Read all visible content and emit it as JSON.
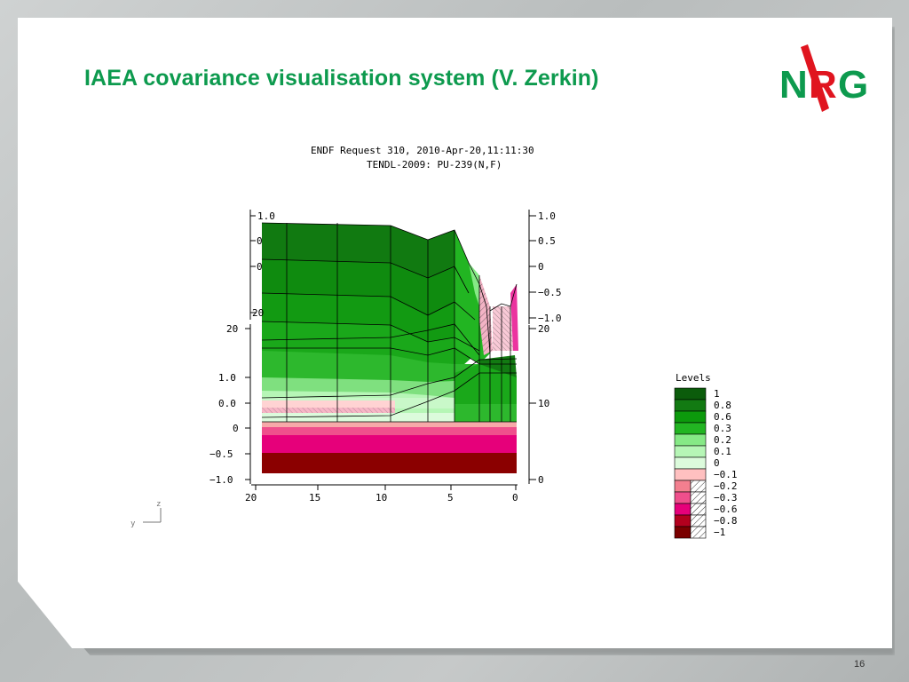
{
  "slide": {
    "title": "IAEA covariance visualisation system (V. Zerkin)",
    "page_number": "16",
    "logo_text": [
      "N",
      "R",
      "G"
    ]
  },
  "plot": {
    "header_line1": "ENDF Request 310, 2010-Apr-20,11:11:30",
    "header_line2": "TENDL-2009: PU-239(N,F)",
    "bottom_axis": {
      "ticks": [
        "20",
        "15",
        "10",
        "5",
        "0"
      ],
      "values": [
        20,
        15,
        10,
        5,
        0
      ]
    },
    "right_axis_upper": {
      "ticks": [
        "1.0",
        "0.5",
        "0",
        "−0.5",
        "−1.0"
      ],
      "values": [
        1.0,
        0.5,
        0,
        -0.5,
        -1.0
      ]
    },
    "right_axis_lower": {
      "ticks": [
        "20",
        "10",
        "0"
      ],
      "values": [
        20,
        10,
        0
      ]
    },
    "left_axis_lower": {
      "ticks": [
        "20",
        "1.0",
        "0.0",
        "0",
        "−0.5",
        "−1.0"
      ]
    },
    "left_axis_upper": {
      "ticks": [
        "1.0",
        "0",
        "0",
        "20"
      ]
    },
    "axis_glyphs": {
      "y": "y",
      "z": "z"
    },
    "legend": {
      "title": "Levels",
      "levels": [
        {
          "label": "1",
          "color": "#0b5c0b",
          "hatch": false
        },
        {
          "label": "0.8",
          "color": "#127a12",
          "hatch": false
        },
        {
          "label": "0.6",
          "color": "#0c9a0c",
          "hatch": false
        },
        {
          "label": "0.3",
          "color": "#22b522",
          "hatch": false
        },
        {
          "label": "0.2",
          "color": "#86e986",
          "hatch": false
        },
        {
          "label": "0.1",
          "color": "#b6f6b6",
          "hatch": false
        },
        {
          "label": "0",
          "color": "#dcfbdc",
          "hatch": false
        },
        {
          "label": "−0.1",
          "color": "#ffc0c0",
          "hatch": false
        },
        {
          "label": "−0.2",
          "color": "#f37f8f",
          "hatch": true
        },
        {
          "label": "−0.3",
          "color": "#ef4f8c",
          "hatch": true
        },
        {
          "label": "−0.6",
          "color": "#e6007a",
          "hatch": true
        },
        {
          "label": "−0.8",
          "color": "#b3001e",
          "hatch": true
        },
        {
          "label": "−1",
          "color": "#7a0000",
          "hatch": true
        }
      ]
    }
  }
}
